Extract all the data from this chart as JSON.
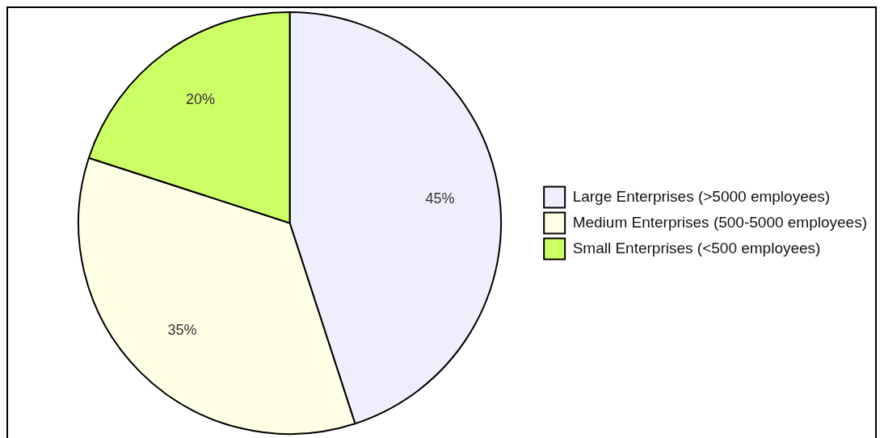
{
  "chart_data": {
    "type": "pie",
    "categories": [
      "Large Enterprises (>5000 employees)",
      "Medium Enterprises (500-5000 employees)",
      "Small Enterprises (<500 employees)"
    ],
    "values": [
      45,
      35,
      20
    ],
    "colors": [
      "#eeeefc",
      "#ffffe6",
      "#ccff66"
    ],
    "value_labels": [
      "45%",
      "35%",
      "20%"
    ],
    "legend": "right"
  }
}
